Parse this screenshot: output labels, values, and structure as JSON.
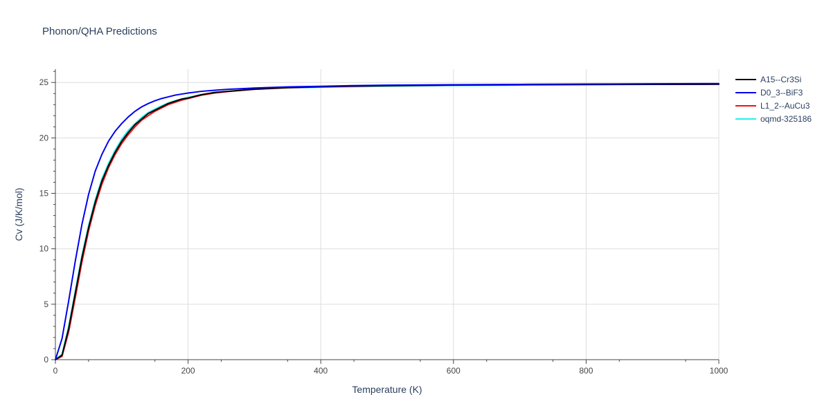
{
  "chart_data": {
    "type": "line",
    "title": "Phonon/QHA Predictions",
    "xlabel": "Temperature (K)",
    "ylabel": "Cv (J/K/mol)",
    "xlim": [
      0,
      1000
    ],
    "ylim": [
      0,
      26.2
    ],
    "x_ticks": [
      0,
      200,
      400,
      600,
      800,
      1000
    ],
    "y_ticks": [
      0,
      5,
      10,
      15,
      20,
      25
    ],
    "grid": true,
    "legend_position": "top-right",
    "x": [
      0,
      10,
      20,
      30,
      40,
      50,
      60,
      70,
      80,
      90,
      100,
      110,
      120,
      130,
      140,
      150,
      160,
      170,
      180,
      190,
      200,
      220,
      240,
      260,
      280,
      300,
      350,
      400,
      450,
      500,
      600,
      700,
      800,
      900,
      1000
    ],
    "series": [
      {
        "name": "A15--Cr3Si",
        "color": "#000000",
        "values": [
          0,
          0.4,
          2.8,
          6.0,
          9.2,
          11.9,
          14.2,
          16.1,
          17.5,
          18.7,
          19.7,
          20.5,
          21.2,
          21.7,
          22.2,
          22.5,
          22.8,
          23.1,
          23.3,
          23.5,
          23.6,
          23.9,
          24.1,
          24.2,
          24.3,
          24.4,
          24.55,
          24.62,
          24.68,
          24.72,
          24.77,
          24.8,
          24.82,
          24.83,
          24.84
        ]
      },
      {
        "name": "D0_3--BiF3",
        "color": "#0000ee",
        "values": [
          0,
          1.9,
          5.3,
          8.9,
          12.2,
          14.9,
          17.0,
          18.5,
          19.7,
          20.6,
          21.3,
          21.9,
          22.4,
          22.8,
          23.1,
          23.35,
          23.55,
          23.7,
          23.85,
          23.95,
          24.05,
          24.2,
          24.3,
          24.38,
          24.44,
          24.5,
          24.6,
          24.66,
          24.72,
          24.76,
          24.8,
          24.83,
          24.86,
          24.88,
          24.9
        ]
      },
      {
        "name": "L1_2--AuCu3",
        "color": "#ee1111",
        "values": [
          0,
          0.3,
          2.5,
          5.6,
          8.8,
          11.6,
          13.9,
          15.8,
          17.3,
          18.5,
          19.5,
          20.3,
          21.0,
          21.6,
          22.0,
          22.4,
          22.7,
          23.0,
          23.2,
          23.4,
          23.55,
          23.85,
          24.05,
          24.18,
          24.28,
          24.38,
          24.52,
          24.6,
          24.66,
          24.7,
          24.76,
          24.79,
          24.81,
          24.83,
          24.84
        ]
      },
      {
        "name": "oqmd-325186",
        "color": "#22eeee",
        "values": [
          0,
          0.5,
          3.0,
          6.2,
          9.4,
          12.1,
          14.4,
          16.3,
          17.7,
          18.9,
          19.9,
          20.7,
          21.3,
          21.85,
          22.3,
          22.6,
          22.9,
          23.15,
          23.35,
          23.5,
          23.65,
          23.9,
          24.1,
          24.2,
          24.3,
          24.38,
          24.5,
          24.57,
          24.62,
          24.66,
          24.72,
          24.76,
          24.8,
          24.83,
          24.86
        ]
      }
    ]
  }
}
